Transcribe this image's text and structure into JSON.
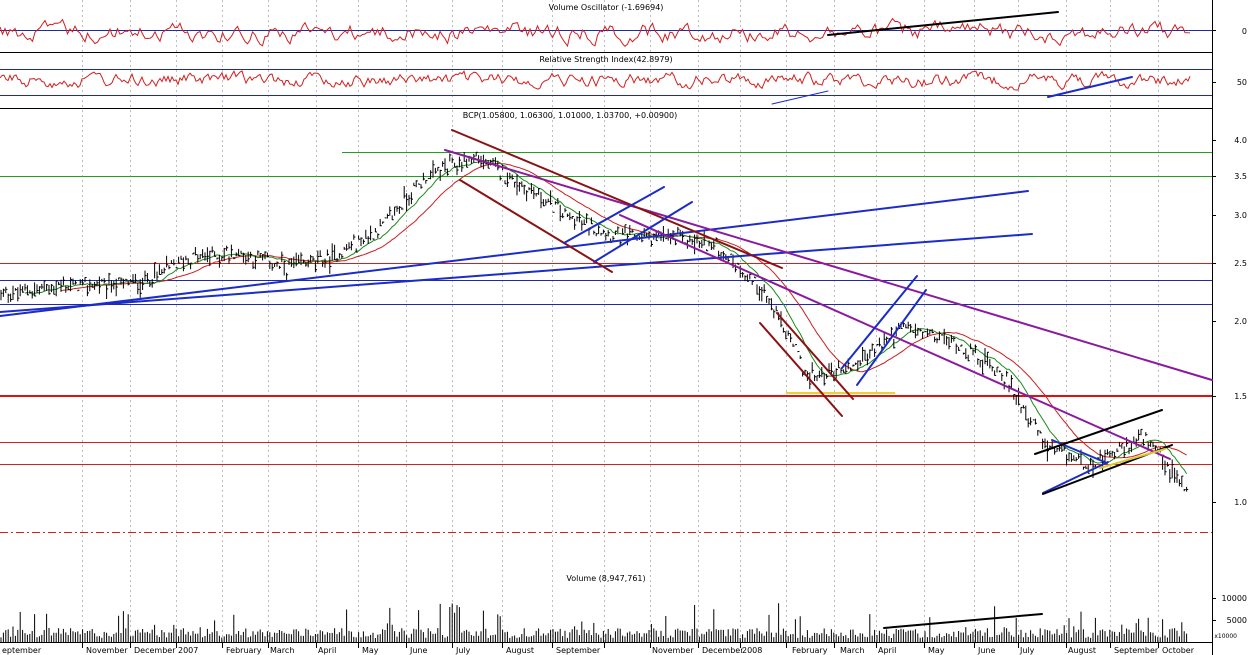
{
  "panels": {
    "volume_oscillator": {
      "title": "Volume Oscillator (-1.69694)",
      "ticks": [
        "0"
      ]
    },
    "rsi": {
      "title": "Relative Strength Index(42.8979)",
      "ticks": [
        "50"
      ]
    },
    "price": {
      "title": "BCP(1.05800, 1.06300, 1.01000, 1.03700, +0.00900)",
      "ticks": [
        "4.0",
        "3.5",
        "3.0",
        "2.5",
        "2.0",
        "1.5",
        "1.0"
      ]
    },
    "volume": {
      "title": "Volume (8,947,761)",
      "ticks": [
        "10000",
        "5000"
      ],
      "unit_label": "x10000"
    }
  },
  "months": [
    {
      "label": "eptember"
    },
    {
      "label": "November"
    },
    {
      "label": "December"
    },
    {
      "label": "2007"
    },
    {
      "label": "February"
    },
    {
      "label": "March"
    },
    {
      "label": "April"
    },
    {
      "label": "May"
    },
    {
      "label": "June"
    },
    {
      "label": "July"
    },
    {
      "label": "August"
    },
    {
      "label": "September"
    },
    {
      "label": "November"
    },
    {
      "label": "December"
    },
    {
      "label": "2008"
    },
    {
      "label": "February"
    },
    {
      "label": "March"
    },
    {
      "label": "April"
    },
    {
      "label": "May"
    },
    {
      "label": "June"
    },
    {
      "label": "July"
    },
    {
      "label": "August"
    },
    {
      "label": "September"
    },
    {
      "label": "October"
    }
  ],
  "chart_data": {
    "type": "line",
    "title": "BCP(1.05800, 1.06300, 1.01000, 1.03700, +0.00900)",
    "ohlc_last": {
      "open": 1.058,
      "high": 1.063,
      "low": 1.01,
      "close": 1.037,
      "change": 0.009
    },
    "scale": "log",
    "ylim": [
      0.72,
      4.4
    ],
    "x": [
      "2006-09",
      "2006-10",
      "2006-11",
      "2006-12",
      "2007-01",
      "2007-02",
      "2007-03",
      "2007-04",
      "2007-05",
      "2007-06",
      "2007-07",
      "2007-08",
      "2007-09",
      "2007-10",
      "2007-11",
      "2007-12",
      "2008-01",
      "2008-02",
      "2008-03",
      "2008-04",
      "2008-05",
      "2008-06",
      "2008-07",
      "2008-08",
      "2008-09",
      "2008-10"
    ],
    "series": [
      {
        "values": [
          2.2,
          2.28,
          2.3,
          2.32,
          2.55,
          2.6,
          2.45,
          2.55,
          2.85,
          3.5,
          3.75,
          3.35,
          2.95,
          2.75,
          2.75,
          2.68,
          2.25,
          1.6,
          1.7,
          1.95,
          1.85,
          1.65,
          1.22,
          1.15,
          1.28,
          1.02
        ]
      }
    ],
    "oscillators": {
      "volume_oscillator": {
        "last": -1.69694
      },
      "rsi": {
        "last": 42.8979
      }
    },
    "volume": {
      "last": 8947761
    },
    "horizontal_levels": [
      3.8,
      3.5,
      2.5,
      2.33,
      2.13,
      1.5,
      1.28,
      1.18,
      0.82
    ],
    "grid": true
  }
}
